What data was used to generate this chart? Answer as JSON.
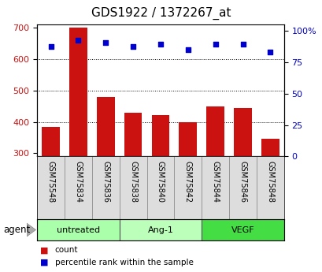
{
  "title": "GDS1922 / 1372267_at",
  "samples": [
    "GSM75548",
    "GSM75834",
    "GSM75836",
    "GSM75838",
    "GSM75840",
    "GSM75842",
    "GSM75844",
    "GSM75846",
    "GSM75848"
  ],
  "counts": [
    385,
    700,
    478,
    428,
    422,
    400,
    448,
    443,
    345
  ],
  "percentile_ranks": [
    83,
    88,
    86,
    83,
    85,
    81,
    85,
    85,
    79
  ],
  "groups": [
    {
      "label": "untreated",
      "indices": [
        0,
        1,
        2
      ],
      "color": "#aaffaa"
    },
    {
      "label": "Ang-1",
      "indices": [
        3,
        4,
        5
      ],
      "color": "#bbffbb"
    },
    {
      "label": "VEGF",
      "indices": [
        6,
        7,
        8
      ],
      "color": "#44dd44"
    }
  ],
  "bar_color": "#cc1111",
  "dot_color": "#0000cc",
  "ylim_left": [
    290,
    710
  ],
  "ylim_right": [
    0,
    105
  ],
  "yticks_left": [
    300,
    400,
    500,
    600,
    700
  ],
  "yticks_right": [
    0,
    25,
    50,
    75,
    100
  ],
  "grid_values": [
    400,
    500,
    600
  ],
  "title_fontsize": 11,
  "tick_fontsize": 8,
  "label_fontsize": 7,
  "group_fontsize": 8,
  "legend_items": [
    "count",
    "percentile rank within the sample"
  ],
  "agent_label": "agent"
}
